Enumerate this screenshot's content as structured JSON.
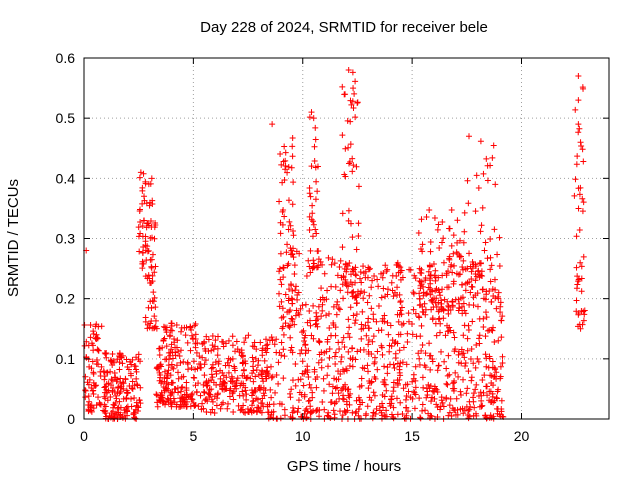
{
  "chart_data": {
    "type": "scatter",
    "title": "Day 228 of 2024, SRMTID for receiver bele",
    "xlabel": "GPS time / hours",
    "ylabel": "SRMTID / TECUs",
    "xlim": [
      0,
      24
    ],
    "ylim": [
      0,
      0.6
    ],
    "xticks": [
      0,
      5,
      10,
      15,
      20
    ],
    "yticks": [
      0,
      0.1,
      0.2,
      0.3,
      0.4,
      0.5,
      0.6
    ],
    "xtick_labels": [
      "0",
      "5",
      "10",
      "15",
      "20"
    ],
    "ytick_labels": [
      "0",
      "0.1",
      "0.2",
      "0.3",
      "0.4",
      "0.5",
      "0.6"
    ],
    "grid": true,
    "marker": "plus",
    "color": "#ff0000",
    "clusters": [
      {
        "x0": 0.0,
        "x1": 0.9,
        "ymin": 0.01,
        "ymax": 0.16,
        "n": 70
      },
      {
        "x0": 0.9,
        "x1": 2.6,
        "ymin": 0.0,
        "ymax": 0.11,
        "n": 170
      },
      {
        "x0": 2.5,
        "x1": 2.85,
        "ymin": 0.25,
        "ymax": 0.41,
        "n": 30
      },
      {
        "x0": 2.8,
        "x1": 3.3,
        "ymin": 0.15,
        "ymax": 0.4,
        "n": 60
      },
      {
        "x0": 3.3,
        "x1": 5.2,
        "ymin": 0.02,
        "ymax": 0.16,
        "n": 200
      },
      {
        "x0": 5.2,
        "x1": 8.4,
        "ymin": 0.01,
        "ymax": 0.14,
        "n": 260
      },
      {
        "x0": 8.4,
        "x1": 9.2,
        "ymin": 0.0,
        "ymax": 0.14,
        "n": 40
      },
      {
        "x0": 8.9,
        "x1": 9.6,
        "ymin": 0.15,
        "ymax": 0.47,
        "n": 70
      },
      {
        "x0": 9.4,
        "x1": 11.8,
        "ymin": 0.0,
        "ymax": 0.28,
        "n": 230
      },
      {
        "x0": 10.3,
        "x1": 10.7,
        "ymin": 0.3,
        "ymax": 0.51,
        "n": 25
      },
      {
        "x0": 11.8,
        "x1": 12.6,
        "ymin": 0.2,
        "ymax": 0.58,
        "n": 60
      },
      {
        "x0": 11.8,
        "x1": 19.2,
        "ymin": 0.0,
        "ymax": 0.26,
        "n": 650
      },
      {
        "x0": 15.3,
        "x1": 17.5,
        "ymin": 0.18,
        "ymax": 0.35,
        "n": 110
      },
      {
        "x0": 17.5,
        "x1": 19.0,
        "ymin": 0.2,
        "ymax": 0.47,
        "n": 50
      },
      {
        "x0": 22.4,
        "x1": 22.9,
        "ymin": 0.15,
        "ymax": 0.57,
        "n": 45
      }
    ],
    "notable_points": [
      {
        "x": 0.1,
        "y": 0.28
      },
      {
        "x": 2.6,
        "y": 0.41
      },
      {
        "x": 3.1,
        "y": 0.4
      },
      {
        "x": 8.6,
        "y": 0.49
      },
      {
        "x": 10.4,
        "y": 0.51
      },
      {
        "x": 12.1,
        "y": 0.58
      },
      {
        "x": 12.3,
        "y": 0.55
      },
      {
        "x": 17.6,
        "y": 0.47
      },
      {
        "x": 18.8,
        "y": 0.39
      },
      {
        "x": 22.6,
        "y": 0.57
      },
      {
        "x": 22.6,
        "y": 0.53
      },
      {
        "x": 22.6,
        "y": 0.49
      },
      {
        "x": 22.7,
        "y": 0.46
      },
      {
        "x": 22.7,
        "y": 0.15
      }
    ]
  }
}
